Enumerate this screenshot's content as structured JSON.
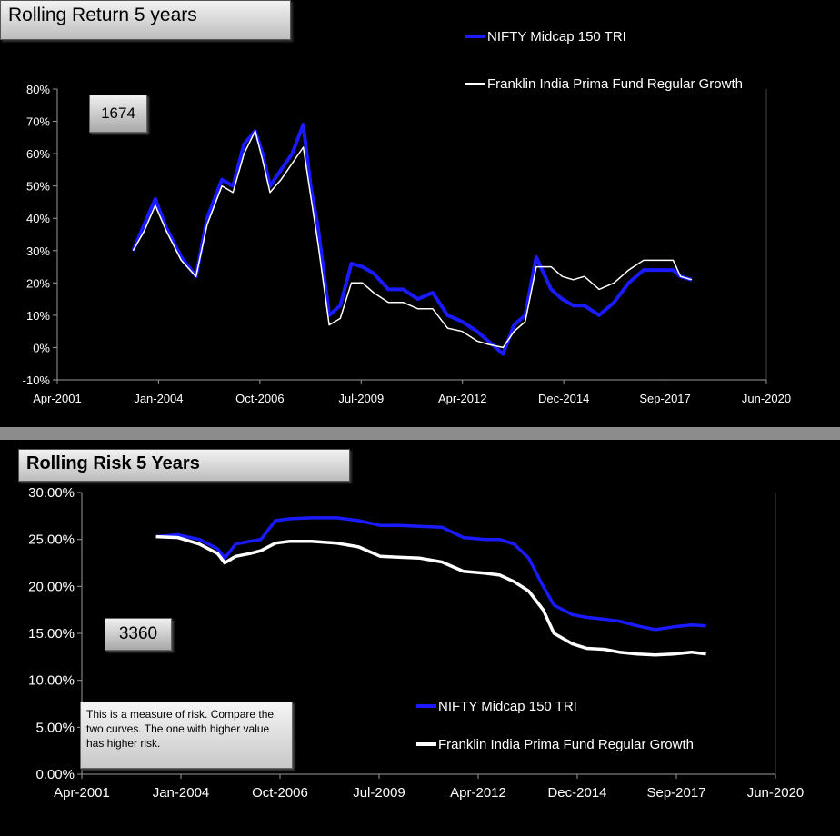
{
  "charts": {
    "return": {
      "title": "Rolling Return 5 years",
      "count_label": "1674",
      "legend": [
        "NIFTY Midcap 150 TRI",
        "Franklin India Prima Fund Regular Growth"
      ],
      "y_ticks": [
        "80%",
        "70%",
        "60%",
        "50%",
        "40%",
        "30%",
        "20%",
        "10%",
        "0%",
        "-10%"
      ],
      "x_ticks": [
        "Apr-2001",
        "Jan-2004",
        "Oct-2006",
        "Jul-2009",
        "Apr-2012",
        "Dec-2014",
        "Sep-2017",
        "Jun-2020"
      ]
    },
    "risk": {
      "title": "Rolling Risk  5 Years",
      "count_label": "3360",
      "legend": [
        "NIFTY Midcap 150 TRI",
        "Franklin India Prima Fund Regular Growth"
      ],
      "y_ticks": [
        "30.00%",
        "25.00%",
        "20.00%",
        "15.00%",
        "10.00%",
        "5.00%",
        "0.00%"
      ],
      "x_ticks": [
        "Apr-2001",
        "Jan-2004",
        "Oct-2006",
        "Jul-2009",
        "Apr-2012",
        "Dec-2014",
        "Sep-2017",
        "Jun-2020"
      ],
      "note": "This is a measure of risk.  Compare the two curves. The one with higher value has higher risk."
    }
  },
  "colors": {
    "nifty": "#1a1aff",
    "franklin": "#ffffff",
    "axis": "#9a9a9a"
  },
  "chart_data": [
    {
      "type": "line",
      "title": "Rolling Return 5 years",
      "ylim": [
        -10,
        80
      ],
      "xlim": [
        2001.25,
        2020.42
      ],
      "y_unit": "%",
      "series": [
        {
          "name": "NIFTY Midcap 150 TRI",
          "x": [
            2003.3,
            2003.6,
            2003.9,
            2004.2,
            2004.6,
            2005.0,
            2005.3,
            2005.7,
            2006.0,
            2006.3,
            2006.6,
            2006.8,
            2007.0,
            2007.3,
            2007.6,
            2007.9,
            2008.1,
            2008.3,
            2008.6,
            2008.9,
            2009.2,
            2009.5,
            2009.8,
            2010.2,
            2010.6,
            2011.0,
            2011.4,
            2011.8,
            2012.2,
            2012.6,
            2012.9,
            2013.3,
            2013.6,
            2013.9,
            2014.2,
            2014.6,
            2014.9,
            2015.2,
            2015.5,
            2015.9,
            2016.3,
            2016.7,
            2017.1,
            2017.5,
            2017.9,
            2018.1,
            2018.4
          ],
          "y": [
            30,
            38,
            46,
            37,
            28,
            22,
            40,
            52,
            50,
            63,
            67,
            60,
            50,
            55,
            60,
            69,
            50,
            37,
            10,
            13,
            26,
            25,
            23,
            18,
            18,
            15,
            17,
            10,
            8,
            5,
            2,
            -2,
            7,
            10,
            28,
            18,
            15,
            13,
            13,
            10,
            14,
            20,
            24,
            24,
            24,
            22,
            21
          ]
        },
        {
          "name": "Franklin India Prima Fund Regular Growth",
          "x": [
            2003.3,
            2003.6,
            2003.9,
            2004.2,
            2004.6,
            2005.0,
            2005.3,
            2005.7,
            2006.0,
            2006.3,
            2006.6,
            2006.8,
            2007.0,
            2007.3,
            2007.6,
            2007.9,
            2008.1,
            2008.3,
            2008.6,
            2008.9,
            2009.2,
            2009.5,
            2009.8,
            2010.2,
            2010.6,
            2011.0,
            2011.4,
            2011.8,
            2012.2,
            2012.6,
            2012.9,
            2013.3,
            2013.6,
            2013.9,
            2014.2,
            2014.6,
            2014.9,
            2015.2,
            2015.5,
            2015.9,
            2016.3,
            2016.7,
            2017.1,
            2017.5,
            2017.9,
            2018.1,
            2018.4
          ],
          "y": [
            30,
            36,
            44,
            36,
            27,
            22,
            38,
            50,
            48,
            60,
            67,
            58,
            48,
            52,
            57,
            62,
            47,
            32,
            7,
            9,
            20,
            20,
            17,
            14,
            14,
            12,
            12,
            6,
            5,
            2,
            1,
            0,
            5,
            8,
            25,
            25,
            22,
            21,
            22,
            18,
            20,
            24,
            27,
            27,
            27,
            22,
            21
          ]
        }
      ]
    },
    {
      "type": "line",
      "title": "Rolling Risk  5 Years",
      "ylim": [
        0,
        30
      ],
      "xlim": [
        2001.25,
        2020.42
      ],
      "y_unit": "%",
      "series": [
        {
          "name": "NIFTY Midcap 150 TRI",
          "x": [
            2003.3,
            2003.9,
            2004.5,
            2005.0,
            2005.2,
            2005.5,
            2005.9,
            2006.2,
            2006.6,
            2007.0,
            2007.6,
            2008.3,
            2008.9,
            2009.5,
            2010.0,
            2010.6,
            2011.2,
            2011.8,
            2012.4,
            2012.8,
            2013.2,
            2013.6,
            2014.0,
            2014.3,
            2014.8,
            2015.2,
            2015.7,
            2016.1,
            2016.6,
            2017.1,
            2017.6,
            2018.1,
            2018.5
          ],
          "y": [
            25.3,
            25.5,
            25.0,
            24.0,
            23.0,
            24.5,
            24.8,
            25.0,
            27.0,
            27.2,
            27.3,
            27.3,
            27.0,
            26.5,
            26.5,
            26.4,
            26.3,
            25.2,
            25.0,
            25.0,
            24.5,
            23.0,
            20.0,
            18.0,
            17.0,
            16.7,
            16.5,
            16.3,
            15.8,
            15.4,
            15.7,
            15.9,
            15.8
          ]
        },
        {
          "name": "Franklin India Prima Fund Regular Growth",
          "x": [
            2003.3,
            2003.9,
            2004.5,
            2005.0,
            2005.2,
            2005.5,
            2005.9,
            2006.2,
            2006.6,
            2007.0,
            2007.6,
            2008.3,
            2008.9,
            2009.5,
            2010.0,
            2010.6,
            2011.2,
            2011.8,
            2012.4,
            2012.8,
            2013.2,
            2013.6,
            2014.0,
            2014.3,
            2014.8,
            2015.2,
            2015.7,
            2016.1,
            2016.6,
            2017.1,
            2017.6,
            2018.1,
            2018.5
          ],
          "y": [
            25.3,
            25.2,
            24.5,
            23.5,
            22.5,
            23.2,
            23.5,
            23.8,
            24.6,
            24.8,
            24.8,
            24.6,
            24.2,
            23.2,
            23.1,
            23.0,
            22.6,
            21.6,
            21.4,
            21.2,
            20.5,
            19.5,
            17.5,
            15.0,
            13.9,
            13.4,
            13.3,
            13.0,
            12.8,
            12.7,
            12.8,
            13.0,
            12.8
          ]
        }
      ]
    }
  ]
}
